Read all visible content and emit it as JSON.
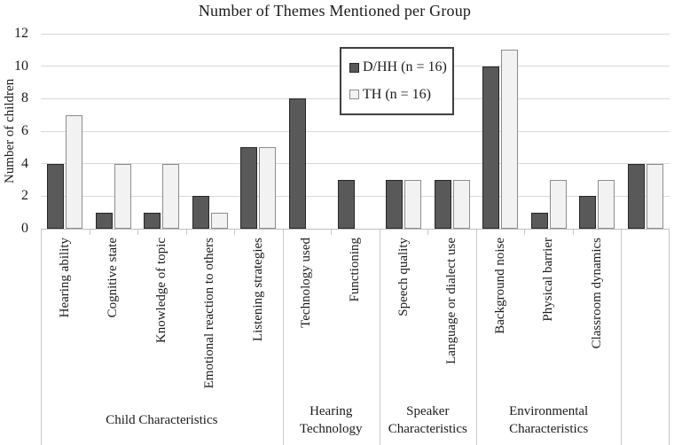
{
  "chart_data": {
    "type": "bar",
    "title": "Number of Themes Mentioned per Group",
    "ylabel": "Number of children",
    "xlabel": "",
    "ylim": [
      0,
      12
    ],
    "yticks": [
      0,
      2,
      4,
      6,
      8,
      10,
      12
    ],
    "grid": true,
    "legend_position": "inside-top-center",
    "categories": [
      "Hearing ability",
      "Cognitive state",
      "Knowledge of topic",
      "Emotional reaction to others",
      "Listening strategies",
      "Technology used",
      "Functioning",
      "Speech quality",
      "Language or dialect use",
      "Background noise",
      "Physical barrier",
      "Classroom dynamics",
      ""
    ],
    "groups": [
      {
        "label": "Child Characteristics",
        "span": 5
      },
      {
        "label": "Hearing Technology",
        "span": 2
      },
      {
        "label": "Speaker Characteristics",
        "span": 2
      },
      {
        "label": "Environmental Characteristics",
        "span": 3
      },
      {
        "label": "",
        "span": 1
      }
    ],
    "series": [
      {
        "name": "D/HH (n = 16)",
        "color": "#595959",
        "border_color": "#262626",
        "values": [
          4,
          1,
          1,
          2,
          5,
          8,
          3,
          3,
          3,
          10,
          1,
          2,
          4
        ]
      },
      {
        "name": "TH (n = 16)",
        "color": "#f2f2f2",
        "border_color": "#8c8c8c",
        "values": [
          7,
          4,
          4,
          1,
          5,
          0,
          0,
          3,
          3,
          11,
          3,
          3,
          4
        ]
      }
    ],
    "colors": {
      "gridline": "#d9d9d9",
      "axis_line": "#bfbfbf",
      "divider": "#c9c9c9",
      "text": "#1a1a1a",
      "legend_border": "#404040",
      "background": "#ffffff"
    }
  }
}
